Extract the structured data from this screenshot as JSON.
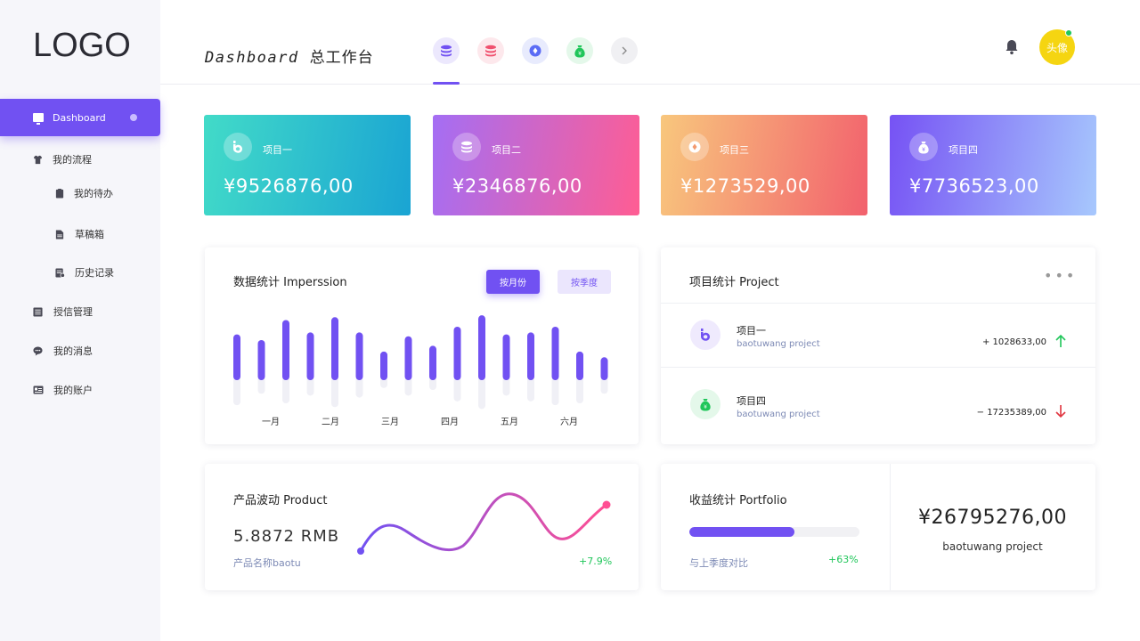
{
  "logo": "LOGO",
  "sidebar": {
    "active": {
      "label": "Dashboard"
    },
    "items": [
      {
        "label": "我的流程",
        "icon": "shirt-icon"
      },
      {
        "label": "我的待办",
        "icon": "clipboard-icon"
      },
      {
        "label": "草稿箱",
        "icon": "file-icon"
      },
      {
        "label": "历史记录",
        "icon": "history-icon"
      },
      {
        "label": "授信管理",
        "icon": "list-icon"
      },
      {
        "label": "我的消息",
        "icon": "message-icon"
      },
      {
        "label": "我的账户",
        "icon": "account-icon"
      }
    ]
  },
  "header": {
    "title_en": "Dashboard",
    "title_zh": "总工作台",
    "tabs": [
      {
        "icon": "database-icon",
        "color": "#7151f2"
      },
      {
        "icon": "database-icon",
        "color": "#f0506e"
      },
      {
        "icon": "compass-icon",
        "color": "#5b6cf5"
      },
      {
        "icon": "money-bag-icon",
        "color": "#20c65a"
      },
      {
        "icon": "chevron-right-icon",
        "color": "#888888"
      }
    ],
    "avatar_label": "头像"
  },
  "cards": [
    {
      "name": "项目一",
      "amount": "¥9526876,00",
      "icon": "b-logo-icon"
    },
    {
      "name": "项目二",
      "amount": "¥2346876,00",
      "icon": "database-icon"
    },
    {
      "name": "项目三",
      "amount": "¥1273529,00",
      "icon": "compass-icon"
    },
    {
      "name": "项目四",
      "amount": "¥7736523,00",
      "icon": "money-bag-icon"
    }
  ],
  "impression": {
    "title": "数据统计 Imperssion",
    "btn_month": "按月份",
    "btn_quarter": "按季度",
    "months": [
      "一月",
      "二月",
      "三月",
      "四月",
      "五月",
      "六月"
    ]
  },
  "chart_data": {
    "type": "bar",
    "values": [
      48,
      42,
      63,
      50,
      66,
      50,
      30,
      46,
      36,
      56,
      68,
      48,
      50,
      56,
      30,
      24
    ],
    "shadow_values": [
      30,
      18,
      28,
      20,
      32,
      22,
      12,
      20,
      14,
      26,
      34,
      20,
      26,
      30,
      28,
      18
    ],
    "xlabels": [
      "一月",
      "二月",
      "三月",
      "四月",
      "五月",
      "六月"
    ],
    "ylim": [
      0,
      70
    ]
  },
  "projects": {
    "title": "项目统计 Project",
    "rows": [
      {
        "name": "项目一",
        "sub": "baotuwang project",
        "value": "+ 1028633,00",
        "trend": "up"
      },
      {
        "name": "项目四",
        "sub": "baotuwang project",
        "value": "− 17235389,00",
        "trend": "down"
      }
    ]
  },
  "product": {
    "title": "产品波动 Product",
    "value": "5.8872  RMB",
    "sub": "产品名称baotu",
    "pct": "+7.9%"
  },
  "portfolio": {
    "title": "收益统计 Portfolio",
    "progress": 0.62,
    "compare_label": "与上季度对比",
    "compare_pct": "+63%",
    "amount": "¥26795276,00",
    "sub": "baotuwang project"
  }
}
